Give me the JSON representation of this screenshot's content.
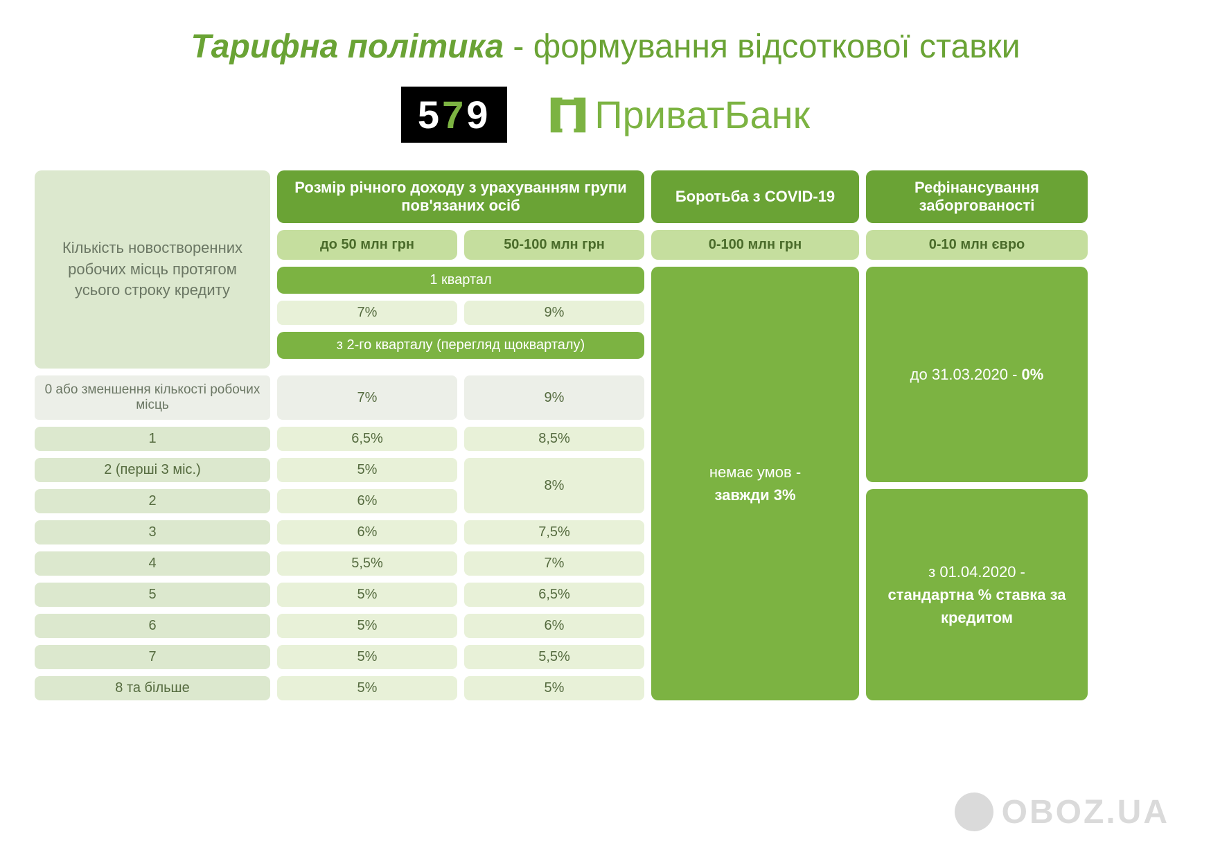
{
  "title_bold": "Тарифна політика",
  "title_rest": " - формування відсоткової ставки",
  "logo579": {
    "five": "5",
    "seven": "7",
    "nine": "9"
  },
  "privatbank": "ПриватБанк",
  "headers": {
    "left": "Кількість новостворенних робочих місць протягом усього строку кредиту",
    "income": "Розмір річного доходу з урахуванням групи пов'язаних осіб",
    "covid": "Боротьба з COVID-19",
    "refin": "Рефінансування заборгованості",
    "sub50": "до 50 млн грн",
    "sub100": "50-100 млн грн",
    "sub_covid": "0-100 млн грн",
    "sub_refin": "0-10 млн євро",
    "q1": "1 квартал",
    "q2": "з 2-го кварталу (перегляд щокварталу)"
  },
  "q1_vals": {
    "a": "7%",
    "b": "9%"
  },
  "rows": [
    {
      "label": "0 або зменшення кількості робочих місць",
      "a": "7%",
      "b": "9%",
      "arow": 1,
      "brow": 1
    },
    {
      "label": "1",
      "a": "6,5%",
      "b": "8,5%",
      "arow": 1,
      "brow": 1
    },
    {
      "label": "2 (перші 3 міс.)",
      "a": "5%",
      "b": "8%",
      "arow": 1,
      "brow": 2
    },
    {
      "label": "2",
      "a": "6%",
      "b": "",
      "arow": 1,
      "brow": 0
    },
    {
      "label": "3",
      "a": "6%",
      "b": "7,5%",
      "arow": 1,
      "brow": 1
    },
    {
      "label": "4",
      "a": "5,5%",
      "b": "7%",
      "arow": 1,
      "brow": 1
    },
    {
      "label": "5",
      "a": "5%",
      "b": "6,5%",
      "arow": 1,
      "brow": 1
    },
    {
      "label": "6",
      "a": "5%",
      "b": "6%",
      "arow": 1,
      "brow": 1
    },
    {
      "label": "7",
      "a": "5%",
      "b": "5,5%",
      "arow": 1,
      "brow": 1
    },
    {
      "label": "8 та більше",
      "a": "5%",
      "b": "5%",
      "arow": 1,
      "brow": 1
    }
  ],
  "covid_text_line1": "немає умов -",
  "covid_text_line2": "завжди 3%",
  "refin1_pre": "до 31.03.2020 - ",
  "refin1_bold": "0%",
  "refin2_pre": "з 01.04.2020 -",
  "refin2_bold": "стандартна % ставка за кредитом",
  "watermark": "OBOZ.UA",
  "colors": {
    "brand_green": "#6aa335",
    "mid_green": "#7cb342",
    "light_green": "#c5de9e",
    "pale_green": "#e8f1d8",
    "row_green": "#dce8ce",
    "gray_cell": "#ecefe8"
  }
}
